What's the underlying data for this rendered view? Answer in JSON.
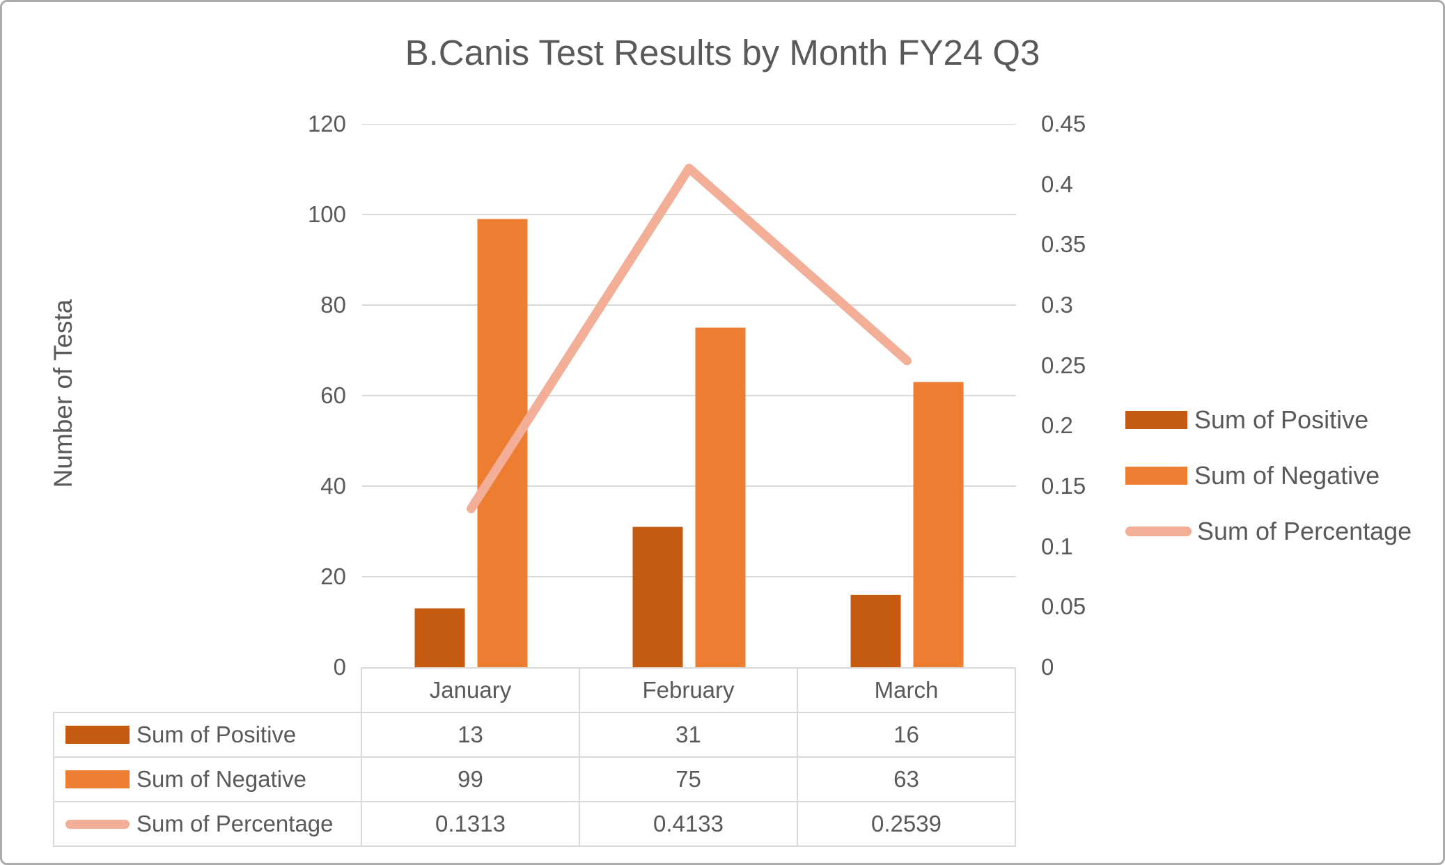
{
  "title": "B.Canis Test Results by Month FY24 Q3",
  "colors": {
    "positive": "#C55A11",
    "negative": "#ED7D31",
    "percentage_line": "#F2AE96",
    "grid": "#D9D9D9",
    "text": "#595959",
    "table_border": "#D9D9D9",
    "canvas_border": "#ABABAB"
  },
  "left_axis": {
    "title": "Number of Testa",
    "ticks": [
      "120",
      "100",
      "80",
      "60",
      "40",
      "20",
      "0"
    ],
    "min": 0,
    "max": 120
  },
  "right_axis": {
    "ticks": [
      "0.45",
      "0.4",
      "0.35",
      "0.3",
      "0.25",
      "0.2",
      "0.15",
      "0.1",
      "0.05",
      "0"
    ],
    "min": 0,
    "max": 0.45
  },
  "legend": [
    {
      "label": "Sum of Positive",
      "swatch": "rect",
      "color": "#C55A11"
    },
    {
      "label": "Sum of Negative",
      "swatch": "rect",
      "color": "#ED7D31"
    },
    {
      "label": "Sum of Percentage",
      "swatch": "line",
      "color": "#F2AE96"
    }
  ],
  "chart_data": {
    "type": "bar",
    "subtype": "clustered-bar-with-secondary-line",
    "title": "B.Canis Test Results by Month FY24 Q3",
    "xlabel": "",
    "ylabel": "Number of Testa",
    "categories": [
      "January",
      "February",
      "March"
    ],
    "series": [
      {
        "name": "Sum of Positive",
        "type": "bar",
        "axis": "primary",
        "color": "#C55A11",
        "values": [
          13,
          31,
          16
        ]
      },
      {
        "name": "Sum of Negative",
        "type": "bar",
        "axis": "primary",
        "color": "#ED7D31",
        "values": [
          99,
          75,
          63
        ]
      },
      {
        "name": "Sum of Percentage",
        "type": "line",
        "axis": "secondary",
        "color": "#F2AE96",
        "values": [
          0.1313,
          0.4133,
          0.2539
        ]
      }
    ],
    "ylim_primary": [
      0,
      120
    ],
    "ylim_secondary": [
      0,
      0.45
    ],
    "grid": true,
    "legend_position": "right"
  },
  "table": {
    "column_headers": [
      "January",
      "February",
      "March"
    ],
    "rows": [
      {
        "label": "Sum of Positive",
        "values": [
          "13",
          "31",
          "16"
        ]
      },
      {
        "label": "Sum of Negative",
        "values": [
          "99",
          "75",
          "63"
        ]
      },
      {
        "label": "Sum of Percentage",
        "values": [
          "0.1313",
          "0.4133",
          "0.2539"
        ]
      }
    ]
  }
}
